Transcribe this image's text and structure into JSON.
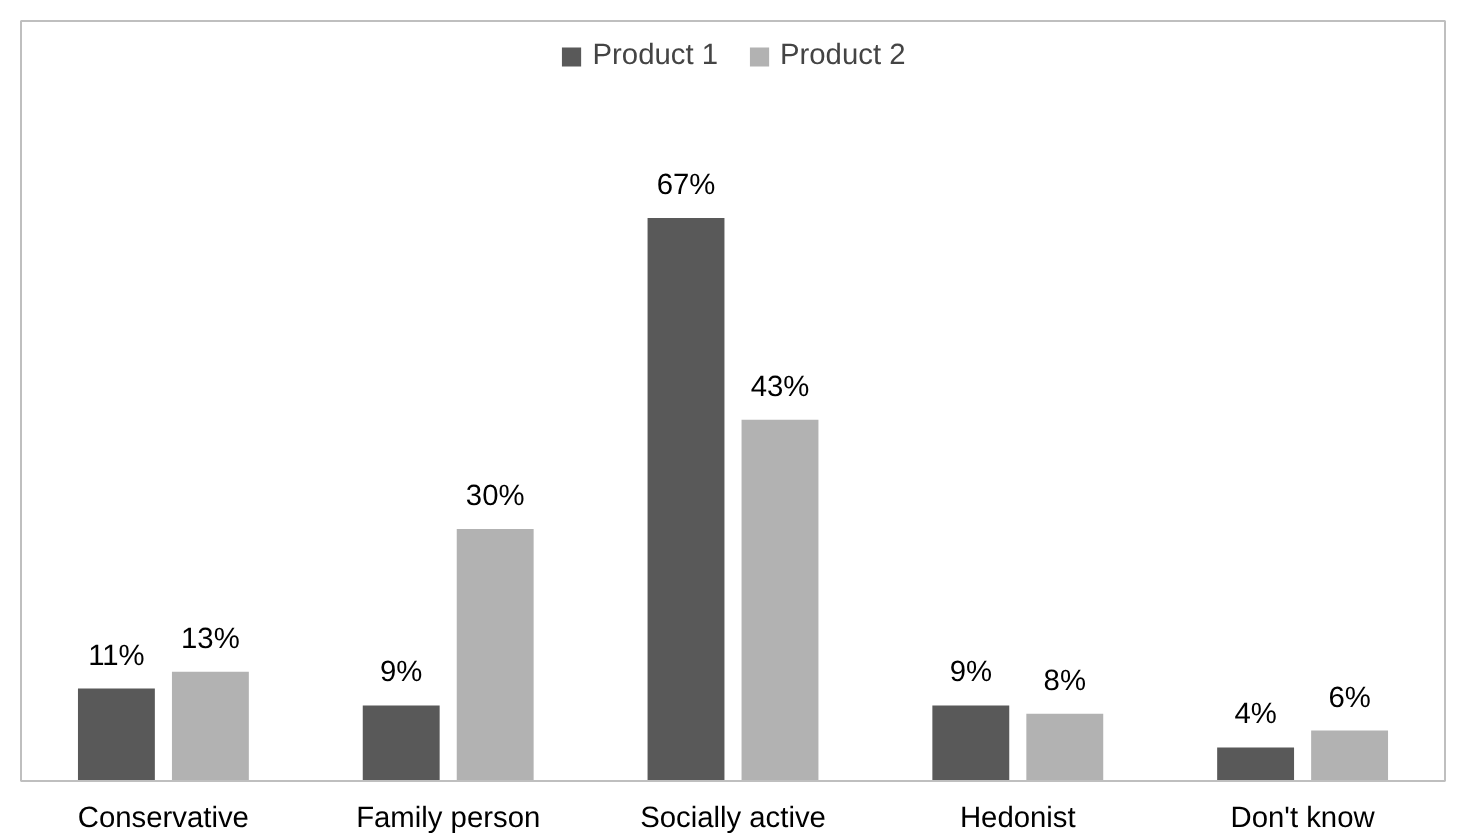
{
  "chart_data": {
    "type": "bar",
    "categories": [
      "Conservative",
      "Family person",
      "Socially active",
      "Hedonist",
      "Don't know"
    ],
    "series": [
      {
        "name": "Product 1",
        "color": "#595959",
        "values": [
          11,
          9,
          67,
          9,
          4
        ],
        "value_labels": [
          "11%",
          "9%",
          "67%",
          "9%",
          "4%"
        ]
      },
      {
        "name": "Product 2",
        "color": "#b2b2b2",
        "values": [
          13,
          30,
          43,
          8,
          6
        ],
        "value_labels": [
          "13%",
          "30%",
          "43%",
          "8%",
          "6%"
        ]
      }
    ],
    "legend": "top",
    "grid": false
  }
}
